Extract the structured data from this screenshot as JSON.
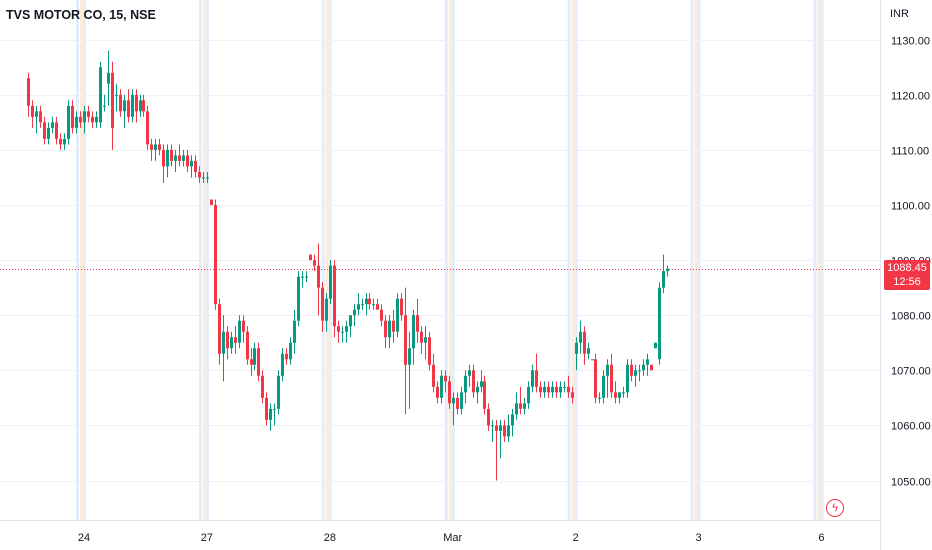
{
  "header": {
    "title": "TVS MOTOR CO, 15, NSE"
  },
  "price_tag": {
    "price": "1088.45",
    "countdown": "12:56"
  },
  "colors": {
    "up": "#089981",
    "down": "#f23645",
    "grid": "#eef0f3",
    "last_line": "#f23645",
    "session_blue": "#e3ecfd",
    "session_orange": "#fdebd3"
  },
  "icons": {
    "alert": "lightning-bolt-icon"
  },
  "chart_data": {
    "type": "candlestick",
    "title": "TVS MOTOR CO, 15, NSE",
    "currency": "INR",
    "interval_minutes": 15,
    "ylim": [
      1044,
      1133
    ],
    "yticks": [
      1050,
      1060,
      1070,
      1080,
      1090,
      1100,
      1110,
      1120,
      1130
    ],
    "ytick_labels": [
      "1050.00",
      "1060.00",
      "1070.00",
      "1080.00",
      "1090.00",
      "1100.00",
      "1110.00",
      "1120.00",
      "1130.00"
    ],
    "xticks": [
      {
        "label": "24",
        "bar": 14
      },
      {
        "label": "27",
        "bar": 45
      },
      {
        "label": "28",
        "bar": 76
      },
      {
        "label": "Mar",
        "bar": 107
      },
      {
        "label": "2",
        "bar": 138
      },
      {
        "label": "3",
        "bar": 169
      },
      {
        "label": "6",
        "bar": 200
      }
    ],
    "last_price": 1088.45,
    "series": [
      {
        "name": "",
        "ohlc": [
          [
            1123,
            1124,
            1116,
            1118
          ],
          [
            1118,
            1119,
            1114,
            1116
          ],
          [
            1116,
            1118,
            1113,
            1117
          ],
          [
            1117,
            1118,
            1114,
            1115
          ],
          [
            1115,
            1116,
            1111,
            1112
          ],
          [
            1112,
            1115,
            1111,
            1114
          ],
          [
            1114,
            1116,
            1113,
            1115
          ],
          [
            1115,
            1116,
            1111,
            1112
          ],
          [
            1112,
            1113,
            1110,
            1111
          ],
          [
            1111,
            1113,
            1110,
            1112
          ],
          [
            1112,
            1119,
            1111,
            1118
          ],
          [
            1118,
            1119,
            1113,
            1114
          ],
          [
            1114,
            1117,
            1113,
            1116
          ],
          [
            1116,
            1117,
            1114,
            1115
          ],
          [
            1115,
            1118,
            1113,
            1117
          ],
          [
            1117,
            1118,
            1115,
            1116
          ],
          [
            1116,
            1117,
            1114,
            1115
          ],
          [
            1115,
            1117,
            1114,
            1116
          ],
          [
            1115,
            1126,
            1114,
            1125
          ],
          [
            1118,
            1120,
            1117,
            1118
          ],
          [
            1122,
            1128,
            1118,
            1124
          ],
          [
            1124,
            1126,
            1110,
            1114
          ],
          [
            1120,
            1122,
            1117,
            1120
          ],
          [
            1120,
            1121,
            1116,
            1117
          ],
          [
            1117,
            1120,
            1114,
            1119
          ],
          [
            1119,
            1121,
            1115,
            1116
          ],
          [
            1116,
            1121,
            1115,
            1120
          ],
          [
            1120,
            1121,
            1115,
            1117
          ],
          [
            1117,
            1120,
            1116,
            1119
          ],
          [
            1119,
            1120,
            1116,
            1117
          ],
          [
            1117,
            1118,
            1110,
            1111
          ],
          [
            1111,
            1112,
            1108,
            1110
          ],
          [
            1110,
            1112,
            1108,
            1111
          ],
          [
            1111,
            1112,
            1109,
            1110
          ],
          [
            1110,
            1111,
            1104,
            1107
          ],
          [
            1107,
            1111,
            1105,
            1110
          ],
          [
            1110,
            1111,
            1107,
            1108
          ],
          [
            1108,
            1110,
            1106,
            1109
          ],
          [
            1109,
            1111,
            1107,
            1108
          ],
          [
            1108,
            1110,
            1107,
            1109
          ],
          [
            1109,
            1110,
            1106,
            1107
          ],
          [
            1107,
            1109,
            1105,
            1108
          ],
          [
            1108,
            1109,
            1105,
            1106
          ],
          [
            1106,
            1107,
            1104,
            1105
          ],
          [
            1105,
            1106,
            1104,
            1105
          ],
          [
            1105,
            1106,
            1104,
            1105
          ],
          [
            1101,
            1101,
            1100,
            1100
          ],
          [
            1100,
            1101,
            1081,
            1082
          ],
          [
            1082,
            1083,
            1071,
            1073
          ],
          [
            1073,
            1080,
            1068,
            1077
          ],
          [
            1077,
            1078,
            1072,
            1074
          ],
          [
            1074,
            1077,
            1073,
            1076
          ],
          [
            1076,
            1078,
            1073,
            1075
          ],
          [
            1075,
            1080,
            1074,
            1079
          ],
          [
            1079,
            1080,
            1075,
            1077
          ],
          [
            1077,
            1078,
            1071,
            1072
          ],
          [
            1072,
            1074,
            1069,
            1071
          ],
          [
            1071,
            1075,
            1070,
            1074
          ],
          [
            1074,
            1075,
            1068,
            1069
          ],
          [
            1069,
            1070,
            1064,
            1065
          ],
          [
            1065,
            1066,
            1060,
            1061
          ],
          [
            1061,
            1064,
            1059,
            1063
          ],
          [
            1063,
            1064,
            1060,
            1063
          ],
          [
            1063,
            1070,
            1062,
            1069
          ],
          [
            1069,
            1074,
            1068,
            1073
          ],
          [
            1073,
            1074,
            1071,
            1072
          ],
          [
            1072,
            1076,
            1071,
            1075
          ],
          [
            1075,
            1081,
            1073,
            1079
          ],
          [
            1079,
            1088,
            1078,
            1087
          ],
          [
            1087,
            1088,
            1085,
            1087
          ],
          [
            1087,
            1088,
            1086,
            1087
          ],
          [
            1091,
            1091,
            1090,
            1090
          ],
          [
            1090,
            1091,
            1088,
            1089
          ],
          [
            1089,
            1093,
            1080,
            1085
          ],
          [
            1085,
            1086,
            1077,
            1079
          ],
          [
            1079,
            1084,
            1077,
            1083
          ],
          [
            1083,
            1090,
            1082,
            1089
          ],
          [
            1089,
            1090,
            1076,
            1078
          ],
          [
            1078,
            1079,
            1075,
            1077
          ],
          [
            1077,
            1078,
            1075,
            1077
          ],
          [
            1077,
            1079,
            1075,
            1078
          ],
          [
            1078,
            1080,
            1076,
            1080
          ],
          [
            1080,
            1082,
            1078,
            1081
          ],
          [
            1081,
            1084,
            1080,
            1082
          ],
          [
            1082,
            1083,
            1081,
            1082
          ],
          [
            1082,
            1084,
            1080,
            1083
          ],
          [
            1083,
            1084,
            1081,
            1082
          ],
          [
            1082,
            1083,
            1081,
            1082
          ],
          [
            1082,
            1083,
            1081,
            1081
          ],
          [
            1081,
            1082,
            1078,
            1079
          ],
          [
            1079,
            1080,
            1074,
            1076
          ],
          [
            1076,
            1080,
            1074,
            1079
          ],
          [
            1079,
            1081,
            1075,
            1077
          ],
          [
            1077,
            1084,
            1076,
            1083
          ],
          [
            1083,
            1084,
            1079,
            1080
          ],
          [
            1080,
            1085,
            1062,
            1071
          ],
          [
            1071,
            1077,
            1063,
            1074
          ],
          [
            1074,
            1081,
            1071,
            1080
          ],
          [
            1080,
            1083,
            1075,
            1077
          ],
          [
            1077,
            1078,
            1073,
            1075
          ],
          [
            1075,
            1078,
            1072,
            1076
          ],
          [
            1076,
            1077,
            1070,
            1071
          ],
          [
            1071,
            1073,
            1066,
            1067
          ],
          [
            1067,
            1068,
            1064,
            1065
          ],
          [
            1065,
            1070,
            1064,
            1069
          ],
          [
            1069,
            1070,
            1066,
            1068
          ],
          [
            1068,
            1069,
            1063,
            1064
          ],
          [
            1064,
            1066,
            1060,
            1065
          ],
          [
            1065,
            1066,
            1062,
            1063
          ],
          [
            1063,
            1067,
            1062,
            1066
          ],
          [
            1066,
            1070,
            1064,
            1069
          ],
          [
            1069,
            1071,
            1067,
            1070
          ],
          [
            1070,
            1071,
            1065,
            1066
          ],
          [
            1066,
            1068,
            1064,
            1067
          ],
          [
            1067,
            1070,
            1066,
            1068
          ],
          [
            1068,
            1069,
            1062,
            1063
          ],
          [
            1063,
            1064,
            1059,
            1060
          ],
          [
            1060,
            1061,
            1057,
            1060
          ],
          [
            1060,
            1061,
            1050,
            1059
          ],
          [
            1059,
            1061,
            1054,
            1060
          ],
          [
            1060,
            1061,
            1057,
            1058
          ],
          [
            1058,
            1062,
            1057,
            1060
          ],
          [
            1060,
            1063,
            1058,
            1062
          ],
          [
            1062,
            1066,
            1061,
            1064
          ],
          [
            1064,
            1067,
            1062,
            1063
          ],
          [
            1063,
            1065,
            1062,
            1064
          ],
          [
            1064,
            1068,
            1063,
            1067
          ],
          [
            1067,
            1071,
            1066,
            1070
          ],
          [
            1070,
            1073,
            1066,
            1067
          ],
          [
            1067,
            1068,
            1065,
            1066
          ],
          [
            1066,
            1068,
            1065,
            1067
          ],
          [
            1067,
            1068,
            1065,
            1066
          ],
          [
            1066,
            1068,
            1065,
            1067
          ],
          [
            1067,
            1068,
            1065,
            1066
          ],
          [
            1066,
            1068,
            1065,
            1067
          ],
          [
            1067,
            1068,
            1066,
            1067
          ],
          [
            1067,
            1069,
            1065,
            1066
          ],
          [
            1066,
            1067,
            1064,
            1065
          ],
          [
            1073,
            1076,
            1070,
            1075
          ],
          [
            1075,
            1079,
            1073,
            1077
          ],
          [
            1077,
            1078,
            1071,
            1073
          ],
          [
            1073,
            1075,
            1072,
            1074
          ],
          [
            1072,
            1072,
            1072,
            1072
          ],
          [
            1072,
            1073,
            1064,
            1065
          ],
          [
            1065,
            1066,
            1064,
            1065
          ],
          [
            1065,
            1070,
            1064,
            1069
          ],
          [
            1069,
            1072,
            1065,
            1071
          ],
          [
            1071,
            1073,
            1065,
            1066
          ],
          [
            1066,
            1068,
            1064,
            1065
          ],
          [
            1065,
            1066,
            1064,
            1066
          ],
          [
            1066,
            1067,
            1065,
            1066
          ],
          [
            1066,
            1072,
            1065,
            1071
          ],
          [
            1071,
            1072,
            1068,
            1069
          ],
          [
            1069,
            1071,
            1067,
            1070
          ],
          [
            1070,
            1071,
            1068,
            1070
          ],
          [
            1070,
            1072,
            1069,
            1071
          ],
          [
            1071,
            1073,
            1069,
            1072
          ],
          [
            1071,
            1071,
            1070,
            1070
          ],
          [
            1074,
            1075,
            1074,
            1075
          ],
          [
            1072,
            1086,
            1071,
            1085
          ],
          [
            1085,
            1091,
            1084,
            1088
          ],
          [
            1088,
            1089,
            1087,
            1088.45
          ]
        ]
      }
    ]
  }
}
